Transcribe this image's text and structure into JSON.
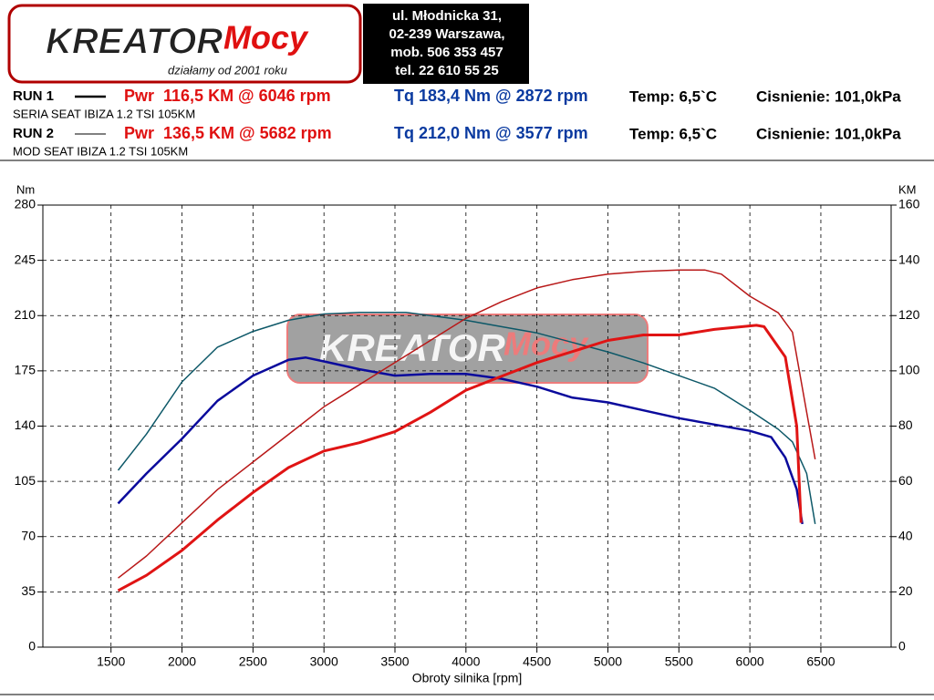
{
  "header": {
    "logo": {
      "word1": "KREATOR",
      "word2": "Mocy",
      "slogan": "działamy od 2001 roku"
    },
    "address": [
      "ul. Młodnicka 31,",
      "02-239  Warszawa,",
      "mob.  506 353 457",
      "tel.  22 610 55 25"
    ]
  },
  "runs": [
    {
      "label": "RUN 1",
      "power": "Pwr  116,5 KM @ 6046 rpm",
      "torque": "Tq 183,4 Nm @ 2872 rpm",
      "temp": "Temp: 6,5`C",
      "pressure": "Cisnienie: 101,0kPa",
      "car": "SERIA SEAT IBIZA 1.2 TSI 105KM"
    },
    {
      "label": "RUN 2",
      "power": "Pwr  136,5 KM @ 5682 rpm",
      "torque": "Tq 212,0 Nm @ 3577 rpm",
      "temp": "Temp: 6,5`C",
      "pressure": "Cisnienie: 101,0kPa",
      "car": "MOD SEAT IBIZA 1.2 TSI 105KM"
    }
  ],
  "chart_data": {
    "type": "line",
    "x_label": "Obroty silnika [rpm]",
    "y_label": "Nm",
    "y2_label": "KM",
    "xlim": [
      1020,
      6995
    ],
    "xticks": [
      1500,
      2000,
      2500,
      3000,
      3500,
      4000,
      4500,
      5000,
      5500,
      6000,
      6500
    ],
    "ylim": [
      0,
      280
    ],
    "yticks": [
      0,
      35,
      70,
      105,
      140,
      175,
      210,
      245,
      280
    ],
    "y2lim": [
      0,
      160
    ],
    "y2ticks": [
      0,
      20,
      40,
      60,
      80,
      100,
      120,
      140,
      160
    ],
    "grid": true,
    "series": [
      {
        "color": "#0a0a9c",
        "width": 2.5,
        "x": [
          1550,
          1750,
          2000,
          2250,
          2500,
          2750,
          2872,
          3000,
          3250,
          3500,
          3750,
          4000,
          4250,
          4500,
          4750,
          5000,
          5250,
          5500,
          5750,
          6000,
          6150,
          6250,
          6330,
          6370
        ],
        "values": [
          91,
          110,
          132,
          156,
          172,
          182,
          183.4,
          181,
          176,
          172,
          173,
          173,
          170,
          165,
          158,
          155,
          150,
          145,
          141,
          137,
          133,
          120,
          100,
          78
        ]
      },
      {
        "color": "#0d5868",
        "width": 1.5,
        "x": [
          1550,
          1750,
          2000,
          2250,
          2500,
          2750,
          3000,
          3250,
          3577,
          3750,
          4000,
          4250,
          4500,
          4750,
          5000,
          5250,
          5500,
          5750,
          6000,
          6200,
          6300,
          6400,
          6460
        ],
        "values": [
          112,
          135,
          168,
          190,
          200,
          207,
          211,
          212,
          212,
          210,
          207,
          203,
          199,
          193,
          187,
          180,
          172,
          164,
          150,
          138,
          130,
          110,
          78
        ]
      },
      {
        "color": "#e01414",
        "width": 3,
        "axis": "y2",
        "x": [
          1550,
          1750,
          2000,
          2250,
          2500,
          2750,
          3000,
          3250,
          3500,
          3750,
          4000,
          4250,
          4500,
          4750,
          5000,
          5250,
          5500,
          5750,
          6046,
          6100,
          6250,
          6330,
          6360
        ],
        "values": [
          20.5,
          26,
          35,
          46,
          56,
          65,
          71,
          74,
          78,
          85,
          93,
          98,
          103,
          107,
          111,
          113,
          113,
          115,
          116.5,
          116,
          105,
          80,
          45
        ]
      },
      {
        "color": "#b81818",
        "width": 1.5,
        "axis": "y2",
        "x": [
          1550,
          1750,
          2000,
          2250,
          2500,
          2750,
          3000,
          3250,
          3500,
          3750,
          4000,
          4250,
          4500,
          4750,
          5000,
          5250,
          5500,
          5682,
          5800,
          6000,
          6200,
          6300,
          6400,
          6460
        ],
        "values": [
          25,
          33,
          45,
          57,
          67,
          77,
          87,
          95,
          103,
          111,
          119,
          125,
          130,
          133,
          135,
          136,
          136.5,
          136.5,
          135,
          127,
          121,
          114,
          85,
          68
        ]
      }
    ]
  }
}
